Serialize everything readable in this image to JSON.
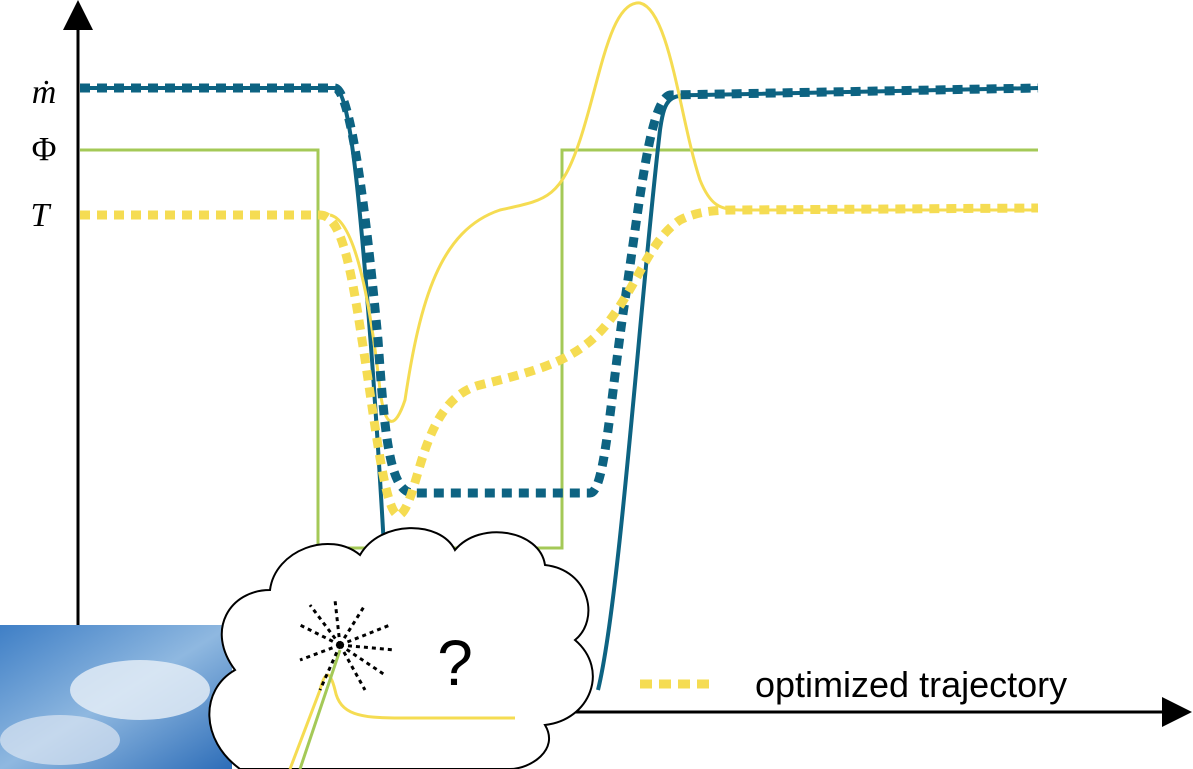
{
  "labels": {
    "mdot": "ṁ",
    "phi": "Φ",
    "temperature": "T"
  },
  "cloud": {
    "symbol": "?"
  },
  "legend": {
    "label": "optimized trajectory"
  }
}
